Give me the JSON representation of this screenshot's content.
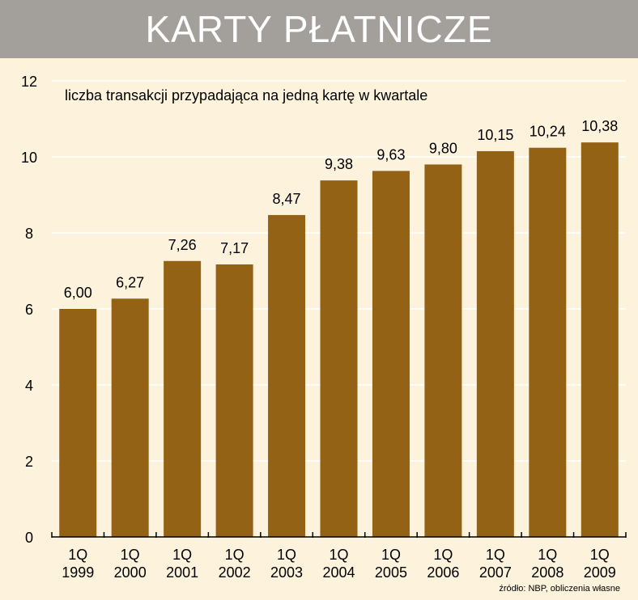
{
  "header": {
    "title": "KARTY PŁATNICZE"
  },
  "source": "źródło: NBP, obliczenia własne",
  "colors": {
    "bar": "#946214",
    "grid": "#ffffff",
    "background": "#fdf3dd",
    "header": "#a3a09c"
  },
  "chart_data": {
    "type": "bar",
    "title": "liczba transakcji przypadająca na jedną kartę w kwartale",
    "categories": [
      [
        "1Q",
        "1999"
      ],
      [
        "1Q",
        "2000"
      ],
      [
        "1Q",
        "2001"
      ],
      [
        "1Q",
        "2002"
      ],
      [
        "1Q",
        "2003"
      ],
      [
        "1Q",
        "2004"
      ],
      [
        "1Q",
        "2005"
      ],
      [
        "1Q",
        "2006"
      ],
      [
        "1Q",
        "2007"
      ],
      [
        "1Q",
        "2008"
      ],
      [
        "1Q",
        "2009"
      ]
    ],
    "values": [
      6.0,
      6.27,
      7.26,
      7.17,
      8.47,
      9.38,
      9.63,
      9.8,
      10.15,
      10.24,
      10.38
    ],
    "value_labels": [
      "6,00",
      "6,27",
      "7,26",
      "7,17",
      "8,47",
      "9,38",
      "9,63",
      "9,80",
      "10,15",
      "10,24",
      "10,38"
    ],
    "ylim": [
      0,
      12
    ],
    "yticks": [
      0,
      2,
      4,
      6,
      8,
      10,
      12
    ],
    "grid": true,
    "legend": "none"
  }
}
